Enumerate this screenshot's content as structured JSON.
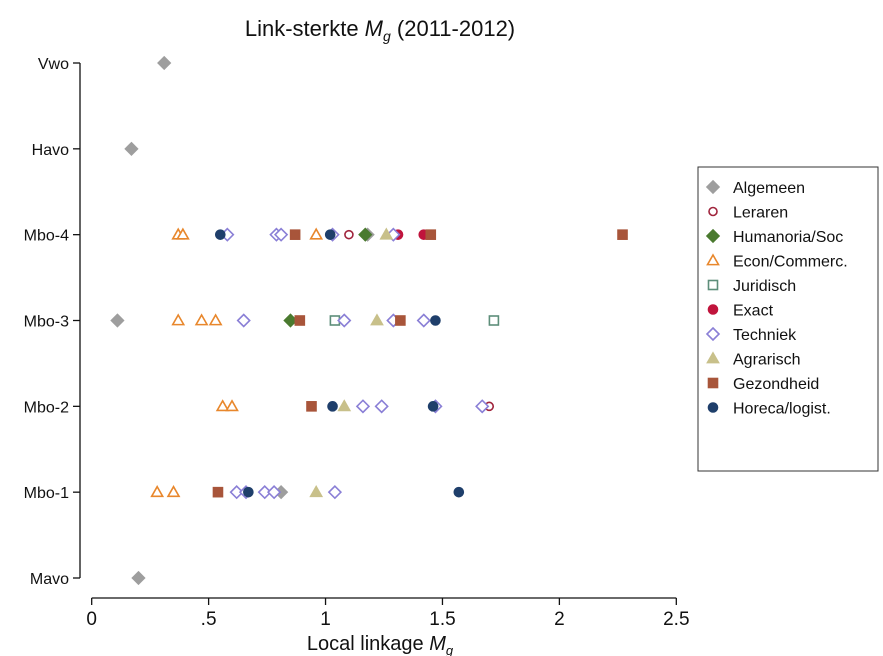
{
  "chart_data": {
    "type": "scatter",
    "title": {
      "main": "Link-sterkte ",
      "symbol": "M",
      "subscript": "g",
      "suffix": " (2011-2012)"
    },
    "xlabel": {
      "main": "Local linkage ",
      "symbol": "M",
      "subscript": "g"
    },
    "xlim": [
      -0.05,
      2.55
    ],
    "x_ticks": [
      0,
      0.5,
      1,
      1.5,
      2,
      2.5
    ],
    "x_tick_labels": [
      "0",
      ".5",
      "1",
      "1.5",
      "2",
      "2.5"
    ],
    "categories": [
      "Vwo",
      "Havo",
      "Mbo-4",
      "Mbo-3",
      "Mbo-2",
      "Mbo-1",
      "Mavo"
    ],
    "grid": false,
    "legend_position": "right",
    "series": [
      {
        "name": "Algemeen",
        "marker": "diamond-filled",
        "color": "#9e9e9e",
        "points": [
          {
            "y": "Vwo",
            "x": 0.31
          },
          {
            "y": "Havo",
            "x": 0.17
          },
          {
            "y": "Mbo-4",
            "x": 1.18
          },
          {
            "y": "Mbo-3",
            "x": 0.11
          },
          {
            "y": "Mbo-1",
            "x": 0.81
          },
          {
            "y": "Mavo",
            "x": 0.2
          }
        ]
      },
      {
        "name": "Leraren",
        "marker": "circle-open",
        "color": "#a0243c",
        "points": [
          {
            "y": "Mbo-4",
            "x": 1.1
          },
          {
            "y": "Mbo-2",
            "x": 1.7
          }
        ]
      },
      {
        "name": "Humanoria/Soc",
        "marker": "diamond-filled",
        "color": "#4a7a2f",
        "points": [
          {
            "y": "Mbo-4",
            "x": 1.17
          },
          {
            "y": "Mbo-3",
            "x": 0.85
          }
        ]
      },
      {
        "name": "Econ/Commerc.",
        "marker": "triangle-open",
        "color": "#e8872c",
        "points": [
          {
            "y": "Mbo-4",
            "x": 0.37
          },
          {
            "y": "Mbo-4",
            "x": 0.39
          },
          {
            "y": "Mbo-4",
            "x": 0.96
          },
          {
            "y": "Mbo-3",
            "x": 0.37
          },
          {
            "y": "Mbo-3",
            "x": 0.47
          },
          {
            "y": "Mbo-3",
            "x": 0.53
          },
          {
            "y": "Mbo-2",
            "x": 0.56
          },
          {
            "y": "Mbo-2",
            "x": 0.6
          },
          {
            "y": "Mbo-1",
            "x": 0.28
          },
          {
            "y": "Mbo-1",
            "x": 0.35
          }
        ]
      },
      {
        "name": "Juridisch",
        "marker": "square-open",
        "color": "#5d8e7a",
        "points": [
          {
            "y": "Mbo-3",
            "x": 1.04
          },
          {
            "y": "Mbo-3",
            "x": 1.72
          }
        ]
      },
      {
        "name": "Exact",
        "marker": "circle-filled",
        "color": "#c0143c",
        "points": [
          {
            "y": "Mbo-4",
            "x": 1.31
          },
          {
            "y": "Mbo-4",
            "x": 1.42
          }
        ]
      },
      {
        "name": "Techniek",
        "marker": "diamond-open",
        "color": "#8a7fd6",
        "points": [
          {
            "y": "Mbo-4",
            "x": 0.58
          },
          {
            "y": "Mbo-4",
            "x": 0.79
          },
          {
            "y": "Mbo-4",
            "x": 0.81
          },
          {
            "y": "Mbo-4",
            "x": 1.03
          },
          {
            "y": "Mbo-4",
            "x": 1.29
          },
          {
            "y": "Mbo-3",
            "x": 0.65
          },
          {
            "y": "Mbo-3",
            "x": 1.08
          },
          {
            "y": "Mbo-3",
            "x": 1.29
          },
          {
            "y": "Mbo-3",
            "x": 1.42
          },
          {
            "y": "Mbo-2",
            "x": 1.16
          },
          {
            "y": "Mbo-2",
            "x": 1.24
          },
          {
            "y": "Mbo-2",
            "x": 1.47
          },
          {
            "y": "Mbo-2",
            "x": 1.67
          },
          {
            "y": "Mbo-1",
            "x": 0.62
          },
          {
            "y": "Mbo-1",
            "x": 0.66
          },
          {
            "y": "Mbo-1",
            "x": 0.74
          },
          {
            "y": "Mbo-1",
            "x": 0.78
          },
          {
            "y": "Mbo-1",
            "x": 1.04
          }
        ]
      },
      {
        "name": "Agrarisch",
        "marker": "triangle-filled",
        "color": "#c8c08a",
        "points": [
          {
            "y": "Mbo-4",
            "x": 1.26
          },
          {
            "y": "Mbo-3",
            "x": 1.22
          },
          {
            "y": "Mbo-2",
            "x": 1.08
          },
          {
            "y": "Mbo-1",
            "x": 0.96
          }
        ]
      },
      {
        "name": "Gezondheid",
        "marker": "square-filled",
        "color": "#a8553a",
        "points": [
          {
            "y": "Mbo-4",
            "x": 0.87
          },
          {
            "y": "Mbo-4",
            "x": 1.45
          },
          {
            "y": "Mbo-4",
            "x": 2.27
          },
          {
            "y": "Mbo-3",
            "x": 0.89
          },
          {
            "y": "Mbo-3",
            "x": 1.32
          },
          {
            "y": "Mbo-2",
            "x": 0.94
          },
          {
            "y": "Mbo-1",
            "x": 0.54
          }
        ]
      },
      {
        "name": "Horeca/logist.",
        "marker": "circle-filled",
        "color": "#1f3f6b",
        "points": [
          {
            "y": "Mbo-4",
            "x": 0.55
          },
          {
            "y": "Mbo-4",
            "x": 1.02
          },
          {
            "y": "Mbo-3",
            "x": 1.47
          },
          {
            "y": "Mbo-2",
            "x": 1.03
          },
          {
            "y": "Mbo-2",
            "x": 1.46
          },
          {
            "y": "Mbo-1",
            "x": 0.67
          },
          {
            "y": "Mbo-1",
            "x": 1.57
          }
        ]
      }
    ]
  }
}
